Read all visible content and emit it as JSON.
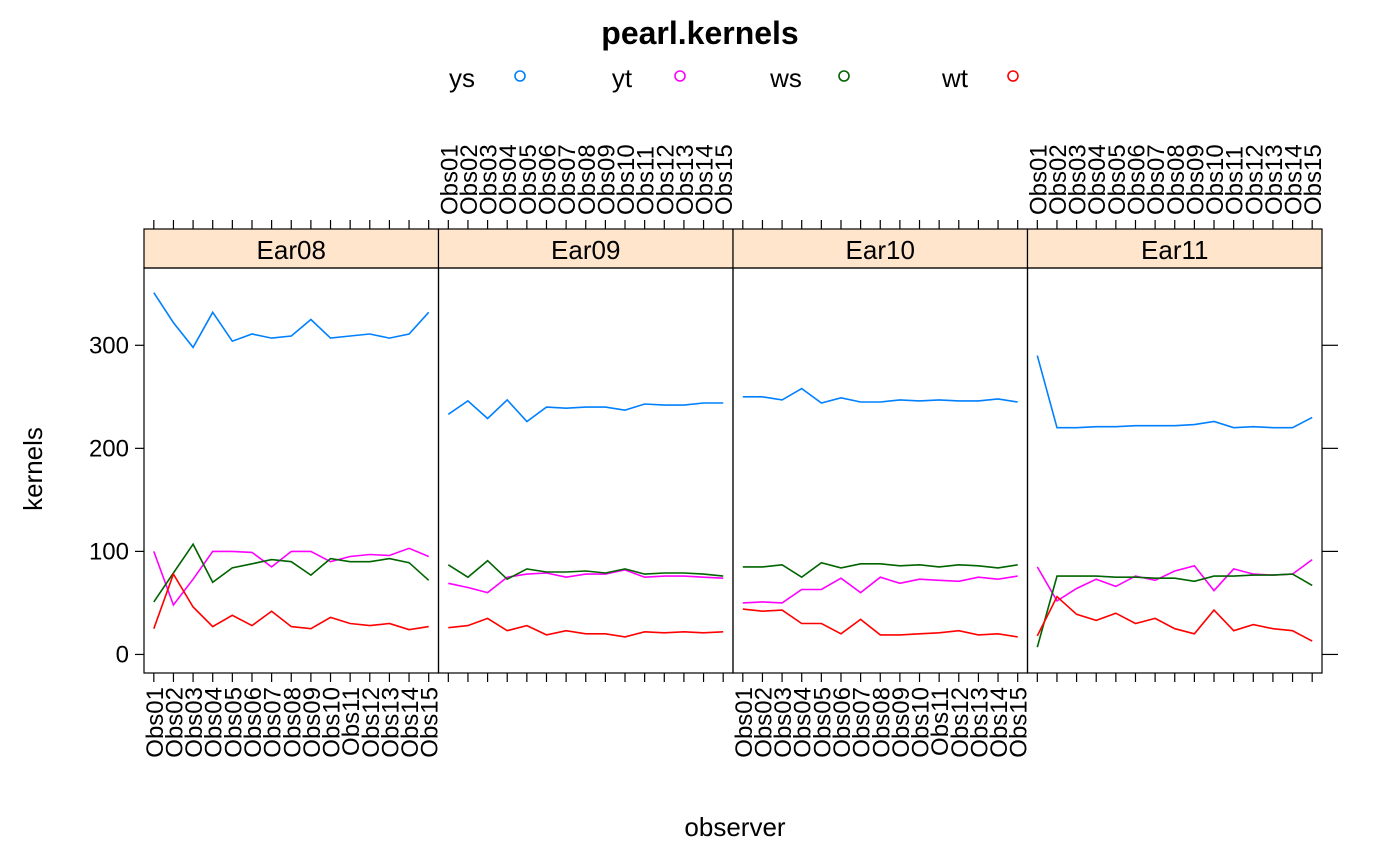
{
  "chart_data": {
    "type": "line",
    "title": "pearl.kernels",
    "xlabel": "observer",
    "ylabel": "kernels",
    "ylim": [
      -18,
      375
    ],
    "yticks": [
      0,
      100,
      200,
      300
    ],
    "grid": false,
    "legend_position": "top",
    "x": [
      "Obs01",
      "Obs02",
      "Obs03",
      "Obs04",
      "Obs05",
      "Obs06",
      "Obs07",
      "Obs08",
      "Obs09",
      "Obs10",
      "Obs11",
      "Obs12",
      "Obs13",
      "Obs14",
      "Obs15"
    ],
    "legend": [
      {
        "key": "ys",
        "label": "ys",
        "color": "#0080ff"
      },
      {
        "key": "yt",
        "label": "yt",
        "color": "#ff00ff"
      },
      {
        "key": "ws",
        "label": "ws",
        "color": "#006400"
      },
      {
        "key": "wt",
        "label": "wt",
        "color": "#ff0000"
      }
    ],
    "panels": [
      {
        "strip": "Ear08",
        "series": [
          {
            "name": "ys",
            "values": [
              351,
              322,
              298,
              332,
              304,
              311,
              307,
              309,
              325,
              307,
              309,
              311,
              307,
              311,
              332
            ]
          },
          {
            "name": "yt",
            "values": [
              100,
              48,
              73,
              100,
              100,
              99,
              85,
              100,
              100,
              90,
              95,
              97,
              96,
              103,
              95
            ]
          },
          {
            "name": "ws",
            "values": [
              51,
              79,
              107,
              70,
              84,
              88,
              92,
              90,
              77,
              93,
              90,
              90,
              93,
              89,
              72
            ]
          },
          {
            "name": "wt",
            "values": [
              25,
              78,
              46,
              27,
              38,
              28,
              42,
              27,
              25,
              36,
              30,
              28,
              30,
              24,
              27
            ]
          }
        ]
      },
      {
        "strip": "Ear09",
        "series": [
          {
            "name": "ys",
            "values": [
              233,
              246,
              229,
              247,
              226,
              240,
              239,
              240,
              240,
              237,
              243,
              242,
              242,
              244,
              244
            ]
          },
          {
            "name": "yt",
            "values": [
              69,
              65,
              60,
              75,
              78,
              79,
              75,
              78,
              78,
              82,
              75,
              76,
              76,
              75,
              74
            ]
          },
          {
            "name": "ws",
            "values": [
              87,
              75,
              91,
              73,
              83,
              80,
              80,
              81,
              79,
              83,
              78,
              79,
              79,
              78,
              76
            ]
          },
          {
            "name": "wt",
            "values": [
              26,
              28,
              35,
              23,
              28,
              19,
              23,
              20,
              20,
              17,
              22,
              21,
              22,
              21,
              22
            ]
          }
        ]
      },
      {
        "strip": "Ear10",
        "series": [
          {
            "name": "ys",
            "values": [
              250,
              250,
              247,
              258,
              244,
              249,
              245,
              245,
              247,
              246,
              247,
              246,
              246,
              248,
              245
            ]
          },
          {
            "name": "yt",
            "values": [
              50,
              51,
              50,
              63,
              63,
              74,
              60,
              75,
              69,
              73,
              72,
              71,
              75,
              73,
              76
            ]
          },
          {
            "name": "ws",
            "values": [
              85,
              85,
              87,
              75,
              89,
              84,
              88,
              88,
              86,
              87,
              85,
              87,
              86,
              84,
              87
            ]
          },
          {
            "name": "wt",
            "values": [
              44,
              42,
              43,
              30,
              30,
              20,
              34,
              19,
              19,
              20,
              21,
              23,
              19,
              20,
              17
            ]
          }
        ]
      },
      {
        "strip": "Ear11",
        "series": [
          {
            "name": "ys",
            "values": [
              290,
              220,
              220,
              221,
              221,
              222,
              222,
              222,
              223,
              226,
              220,
              221,
              220,
              220,
              230
            ]
          },
          {
            "name": "yt",
            "values": [
              85,
              52,
              64,
              73,
              66,
              76,
              72,
              81,
              86,
              62,
              83,
              78,
              77,
              78,
              92
            ]
          },
          {
            "name": "ws",
            "values": [
              7,
              76,
              76,
              76,
              75,
              75,
              74,
              74,
              71,
              76,
              76,
              77,
              77,
              78,
              67
            ]
          },
          {
            "name": "wt",
            "values": [
              18,
              56,
              39,
              33,
              40,
              30,
              35,
              25,
              20,
              43,
              23,
              29,
              25,
              23,
              13
            ]
          }
        ]
      }
    ],
    "strip_color": "#ffe5cc"
  }
}
